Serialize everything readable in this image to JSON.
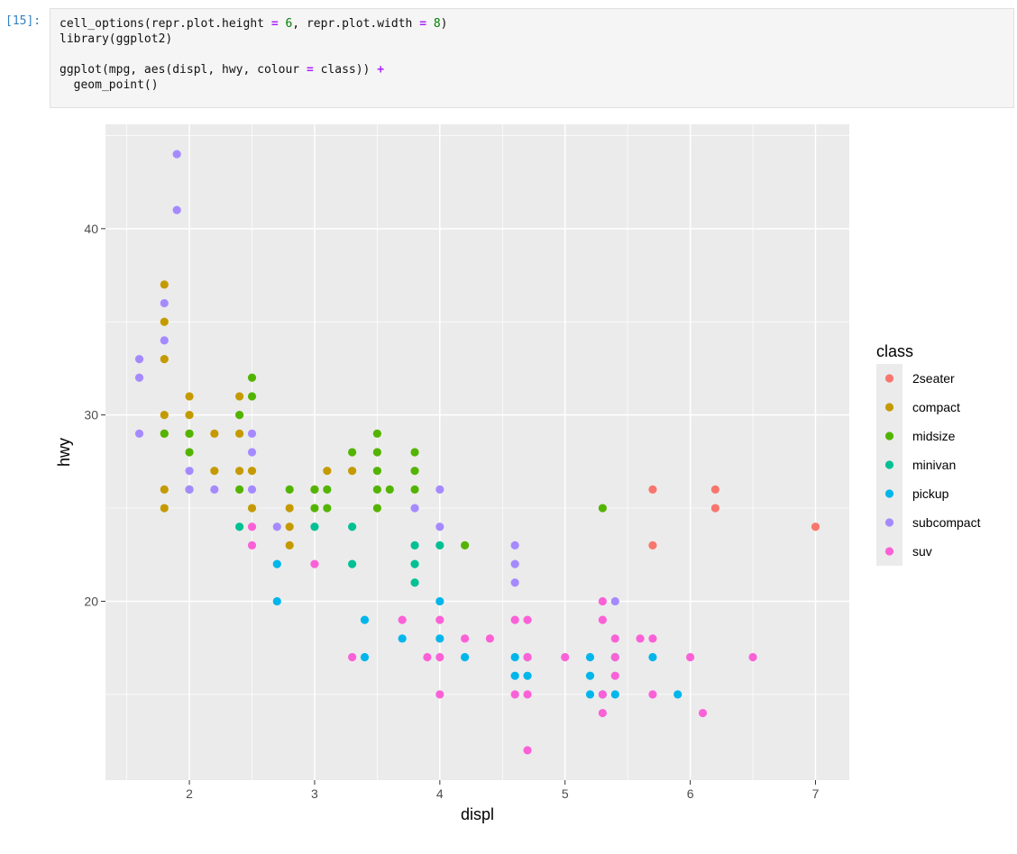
{
  "cell": {
    "prompt": "[15]:",
    "code": {
      "line1": {
        "a": "cell_options(repr.plot.height ",
        "b": "=",
        "c": " ",
        "d": "6",
        "e": ", repr.plot.width ",
        "f": "=",
        "g": " ",
        "h": "8",
        "i": ")"
      },
      "line2": "library(ggplot2)",
      "line4": {
        "a": "ggplot(mpg, aes(displ, hwy, colour ",
        "b": "=",
        "c": " class)) ",
        "d": "+"
      },
      "line5": "  geom_point()"
    }
  },
  "chart_data": {
    "type": "scatter",
    "title": "",
    "xlabel": "displ",
    "ylabel": "hwy",
    "xlim": [
      1.33,
      7.27
    ],
    "ylim": [
      10.4,
      45.6
    ],
    "x_ticks": [
      2,
      3,
      4,
      5,
      6,
      7
    ],
    "y_ticks": [
      20,
      30,
      40
    ],
    "x_tick_labels": [
      "2",
      "3",
      "4",
      "5",
      "6",
      "7"
    ],
    "y_tick_labels": [
      "20",
      "30",
      "40"
    ],
    "x_minor_ticks": [
      1.5,
      2.5,
      3.5,
      4.5,
      5.5,
      6.5
    ],
    "y_minor_ticks": [
      15,
      25,
      35,
      45
    ],
    "grid": true,
    "panel_color": "#ebebeb",
    "grid_color": "#ffffff",
    "legend": {
      "title": "class",
      "position": "right"
    },
    "series": [
      {
        "name": "2seater",
        "color": "#f8766d",
        "points": [
          [
            5.7,
            26
          ],
          [
            5.7,
            23
          ],
          [
            6.2,
            26
          ],
          [
            6.2,
            25
          ],
          [
            7.0,
            24
          ]
        ]
      },
      {
        "name": "compact",
        "color": "#c49a00",
        "points": [
          [
            1.8,
            37
          ],
          [
            1.8,
            35
          ],
          [
            1.8,
            33
          ],
          [
            1.8,
            30
          ],
          [
            1.8,
            29
          ],
          [
            1.8,
            26
          ],
          [
            1.8,
            25
          ],
          [
            2.0,
            31
          ],
          [
            2.0,
            30
          ],
          [
            2.0,
            29
          ],
          [
            2.2,
            29
          ],
          [
            2.2,
            27
          ],
          [
            2.4,
            31
          ],
          [
            2.4,
            29
          ],
          [
            2.4,
            27
          ],
          [
            2.5,
            27
          ],
          [
            2.5,
            25
          ],
          [
            2.8,
            25
          ],
          [
            2.8,
            24
          ],
          [
            2.8,
            23
          ],
          [
            3.0,
            26
          ],
          [
            3.1,
            27
          ],
          [
            3.3,
            27
          ]
        ]
      },
      {
        "name": "midsize",
        "color": "#53b400",
        "points": [
          [
            1.8,
            29
          ],
          [
            2.0,
            29
          ],
          [
            2.0,
            28
          ],
          [
            2.0,
            26
          ],
          [
            2.4,
            30
          ],
          [
            2.4,
            26
          ],
          [
            2.5,
            32
          ],
          [
            2.5,
            31
          ],
          [
            2.8,
            26
          ],
          [
            3.0,
            26
          ],
          [
            3.0,
            25
          ],
          [
            3.1,
            26
          ],
          [
            3.1,
            25
          ],
          [
            3.3,
            28
          ],
          [
            3.5,
            29
          ],
          [
            3.5,
            28
          ],
          [
            3.5,
            27
          ],
          [
            3.5,
            26
          ],
          [
            3.5,
            25
          ],
          [
            3.6,
            26
          ],
          [
            3.8,
            28
          ],
          [
            3.8,
            27
          ],
          [
            3.8,
            26
          ],
          [
            4.2,
            23
          ],
          [
            5.3,
            25
          ]
        ]
      },
      {
        "name": "minivan",
        "color": "#00c094",
        "points": [
          [
            2.4,
            24
          ],
          [
            3.0,
            24
          ],
          [
            3.3,
            24
          ],
          [
            3.3,
            22
          ],
          [
            3.8,
            23
          ],
          [
            3.8,
            22
          ],
          [
            3.8,
            21
          ],
          [
            4.0,
            23
          ]
        ]
      },
      {
        "name": "pickup",
        "color": "#00b6eb",
        "points": [
          [
            2.7,
            22
          ],
          [
            2.7,
            20
          ],
          [
            3.4,
            19
          ],
          [
            3.4,
            17
          ],
          [
            3.7,
            18
          ],
          [
            4.0,
            20
          ],
          [
            4.0,
            18
          ],
          [
            4.2,
            17
          ],
          [
            4.6,
            17
          ],
          [
            4.6,
            16
          ],
          [
            4.7,
            17
          ],
          [
            4.7,
            16
          ],
          [
            5.2,
            17
          ],
          [
            5.2,
            16
          ],
          [
            5.2,
            15
          ],
          [
            5.3,
            15
          ],
          [
            5.4,
            17
          ],
          [
            5.4,
            15
          ],
          [
            5.7,
            17
          ],
          [
            5.9,
            15
          ]
        ]
      },
      {
        "name": "subcompact",
        "color": "#a58aff",
        "points": [
          [
            1.6,
            33
          ],
          [
            1.6,
            32
          ],
          [
            1.6,
            29
          ],
          [
            1.8,
            36
          ],
          [
            1.8,
            34
          ],
          [
            1.9,
            44
          ],
          [
            1.9,
            41
          ],
          [
            2.0,
            27
          ],
          [
            2.0,
            26
          ],
          [
            2.2,
            26
          ],
          [
            2.5,
            29
          ],
          [
            2.5,
            28
          ],
          [
            2.5,
            26
          ],
          [
            2.7,
            24
          ],
          [
            3.8,
            25
          ],
          [
            4.0,
            26
          ],
          [
            4.0,
            24
          ],
          [
            4.6,
            23
          ],
          [
            4.6,
            22
          ],
          [
            4.6,
            21
          ],
          [
            5.4,
            20
          ]
        ]
      },
      {
        "name": "suv",
        "color": "#fb61d7",
        "points": [
          [
            2.5,
            24
          ],
          [
            2.5,
            23
          ],
          [
            3.0,
            22
          ],
          [
            3.3,
            17
          ],
          [
            3.7,
            19
          ],
          [
            3.9,
            17
          ],
          [
            4.0,
            19
          ],
          [
            4.0,
            17
          ],
          [
            4.0,
            15
          ],
          [
            4.2,
            18
          ],
          [
            4.4,
            18
          ],
          [
            4.6,
            19
          ],
          [
            4.6,
            15
          ],
          [
            4.7,
            19
          ],
          [
            4.7,
            17
          ],
          [
            4.7,
            15
          ],
          [
            4.7,
            12
          ],
          [
            5.0,
            17
          ],
          [
            5.3,
            20
          ],
          [
            5.3,
            19
          ],
          [
            5.3,
            15
          ],
          [
            5.3,
            14
          ],
          [
            5.4,
            18
          ],
          [
            5.4,
            17
          ],
          [
            5.4,
            16
          ],
          [
            5.6,
            18
          ],
          [
            5.7,
            18
          ],
          [
            5.7,
            15
          ],
          [
            6.0,
            17
          ],
          [
            6.1,
            14
          ],
          [
            6.5,
            17
          ]
        ]
      }
    ]
  }
}
